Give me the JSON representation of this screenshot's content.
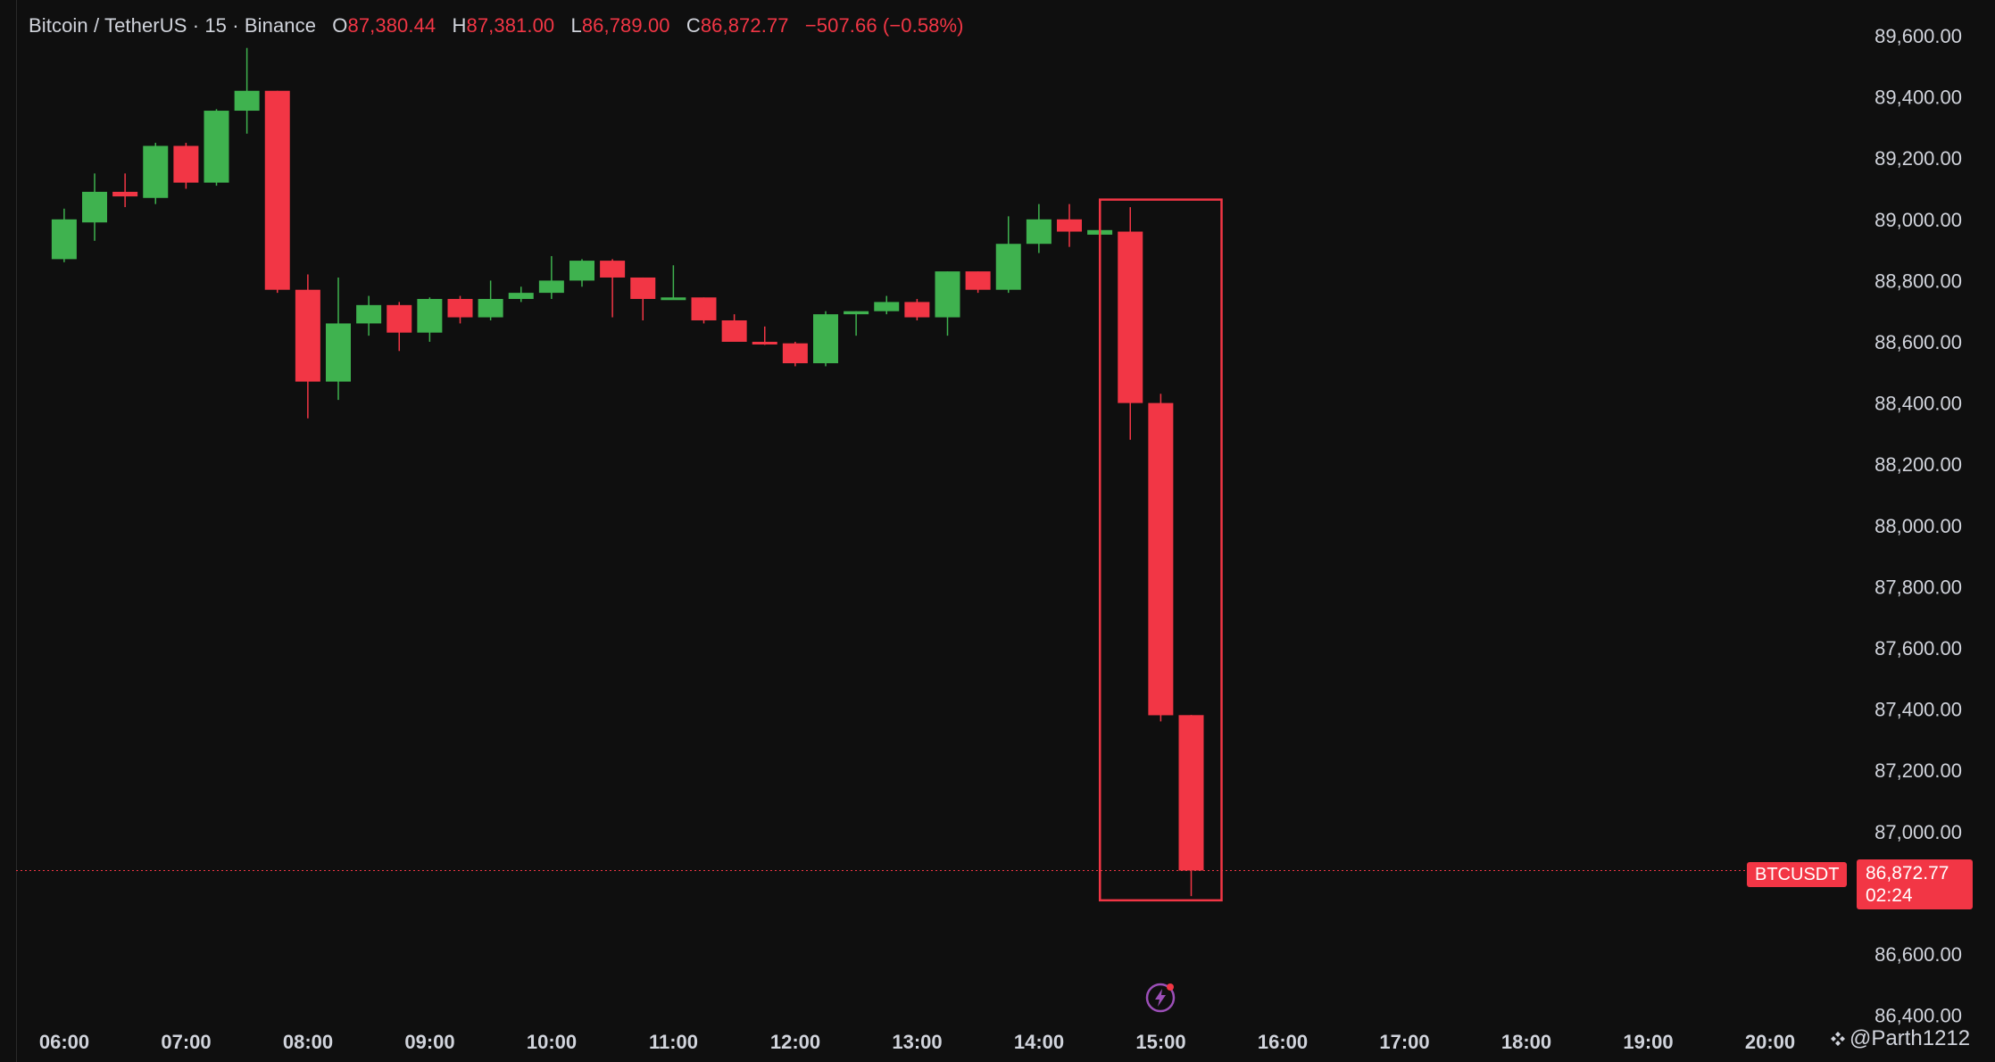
{
  "legend": {
    "symbol": "Bitcoin / TetherUS · 15 · Binance",
    "open_label": "O",
    "open": "87,380.44",
    "high_label": "H",
    "high": "87,381.00",
    "low_label": "L",
    "low": "86,789.00",
    "close_label": "C",
    "close": "86,872.77",
    "change": "−507.66 (−0.58%)"
  },
  "price_tag": {
    "symbol": "BTCUSDT",
    "price": "86,872.77",
    "countdown": "02:24"
  },
  "watermark": {
    "handle": "@Parth1212"
  },
  "colors": {
    "up": "#3fb24f",
    "down": "#f23645",
    "background": "#0f0f0f",
    "highlight_box": "#f23645"
  },
  "chart_data": {
    "type": "candlestick",
    "y_ticks": [
      "89,600.00",
      "89,400.00",
      "89,200.00",
      "89,000.00",
      "88,800.00",
      "88,600.00",
      "88,400.00",
      "88,200.00",
      "88,000.00",
      "87,800.00",
      "87,600.00",
      "87,400.00",
      "87,200.00",
      "87,000.00",
      "86,600.00",
      "86,400.00"
    ],
    "y_tick_values": [
      89600,
      89400,
      89200,
      89000,
      88800,
      88600,
      88400,
      88200,
      88000,
      87800,
      87600,
      87400,
      87200,
      87000,
      86600,
      86400
    ],
    "x_ticks": [
      "06:00",
      "07:00",
      "08:00",
      "09:00",
      "10:00",
      "11:00",
      "12:00",
      "13:00",
      "14:00",
      "15:00",
      "16:00",
      "17:00",
      "18:00",
      "19:00",
      "20:00"
    ],
    "ylim": [
      86400,
      89700
    ],
    "last_price": 86872.77,
    "candles": [
      {
        "t": "05:45",
        "o": 88870,
        "h": 89035,
        "l": 88860,
        "c": 89000
      },
      {
        "t": "06:00",
        "o": 88990,
        "h": 89150,
        "l": 88930,
        "c": 89090
      },
      {
        "t": "06:15",
        "o": 89090,
        "h": 89150,
        "l": 89040,
        "c": 89075
      },
      {
        "t": "06:30",
        "o": 89070,
        "h": 89250,
        "l": 89050,
        "c": 89240
      },
      {
        "t": "06:45",
        "o": 89240,
        "h": 89250,
        "l": 89100,
        "c": 89120
      },
      {
        "t": "07:00",
        "o": 89120,
        "h": 89360,
        "l": 89110,
        "c": 89355
      },
      {
        "t": "07:15",
        "o": 89355,
        "h": 89560,
        "l": 89280,
        "c": 89420
      },
      {
        "t": "07:30",
        "o": 89420,
        "h": 89420,
        "l": 88760,
        "c": 88770
      },
      {
        "t": "07:45",
        "o": 88770,
        "h": 88820,
        "l": 88350,
        "c": 88470
      },
      {
        "t": "08:00",
        "o": 88470,
        "h": 88810,
        "l": 88410,
        "c": 88660
      },
      {
        "t": "08:15",
        "o": 88660,
        "h": 88750,
        "l": 88620,
        "c": 88720
      },
      {
        "t": "08:30",
        "o": 88720,
        "h": 88730,
        "l": 88570,
        "c": 88630
      },
      {
        "t": "08:45",
        "o": 88630,
        "h": 88745,
        "l": 88600,
        "c": 88740
      },
      {
        "t": "09:00",
        "o": 88740,
        "h": 88750,
        "l": 88660,
        "c": 88680
      },
      {
        "t": "09:15",
        "o": 88680,
        "h": 88800,
        "l": 88670,
        "c": 88740
      },
      {
        "t": "09:30",
        "o": 88740,
        "h": 88780,
        "l": 88730,
        "c": 88760
      },
      {
        "t": "09:45",
        "o": 88760,
        "h": 88880,
        "l": 88740,
        "c": 88800
      },
      {
        "t": "10:00",
        "o": 88800,
        "h": 88870,
        "l": 88780,
        "c": 88865
      },
      {
        "t": "10:15",
        "o": 88865,
        "h": 88870,
        "l": 88680,
        "c": 88810
      },
      {
        "t": "10:30",
        "o": 88810,
        "h": 88810,
        "l": 88670,
        "c": 88740
      },
      {
        "t": "10:45",
        "o": 88740,
        "h": 88850,
        "l": 88740,
        "c": 88745
      },
      {
        "t": "11:00",
        "o": 88745,
        "h": 88745,
        "l": 88660,
        "c": 88670
      },
      {
        "t": "11:15",
        "o": 88670,
        "h": 88690,
        "l": 88600,
        "c": 88600
      },
      {
        "t": "11:30",
        "o": 88600,
        "h": 88650,
        "l": 88590,
        "c": 88595
      },
      {
        "t": "11:45",
        "o": 88595,
        "h": 88600,
        "l": 88520,
        "c": 88530
      },
      {
        "t": "12:00",
        "o": 88530,
        "h": 88700,
        "l": 88520,
        "c": 88690
      },
      {
        "t": "12:15",
        "o": 88690,
        "h": 88700,
        "l": 88620,
        "c": 88700
      },
      {
        "t": "12:30",
        "o": 88700,
        "h": 88750,
        "l": 88690,
        "c": 88730
      },
      {
        "t": "12:45",
        "o": 88730,
        "h": 88740,
        "l": 88670,
        "c": 88680
      },
      {
        "t": "13:00",
        "o": 88680,
        "h": 88830,
        "l": 88620,
        "c": 88830
      },
      {
        "t": "13:15",
        "o": 88830,
        "h": 88830,
        "l": 88760,
        "c": 88770
      },
      {
        "t": "13:30",
        "o": 88770,
        "h": 89010,
        "l": 88760,
        "c": 88920
      },
      {
        "t": "13:45",
        "o": 88920,
        "h": 89050,
        "l": 88890,
        "c": 89000
      },
      {
        "t": "14:00",
        "o": 89000,
        "h": 89050,
        "l": 88910,
        "c": 88960
      },
      {
        "t": "14:15",
        "o": 88950,
        "h": 88970,
        "l": 88950,
        "c": 88965
      },
      {
        "t": "14:30",
        "o": 88960,
        "h": 89040,
        "l": 88280,
        "c": 88400
      },
      {
        "t": "14:45",
        "o": 88400,
        "h": 88430,
        "l": 87360,
        "c": 87380
      },
      {
        "t": "15:00",
        "o": 87380.44,
        "h": 87381,
        "l": 86789,
        "c": 86872.77
      }
    ],
    "highlight": {
      "from": "14:30",
      "to": "15:00",
      "top": 89050,
      "bottom": 86790
    }
  }
}
